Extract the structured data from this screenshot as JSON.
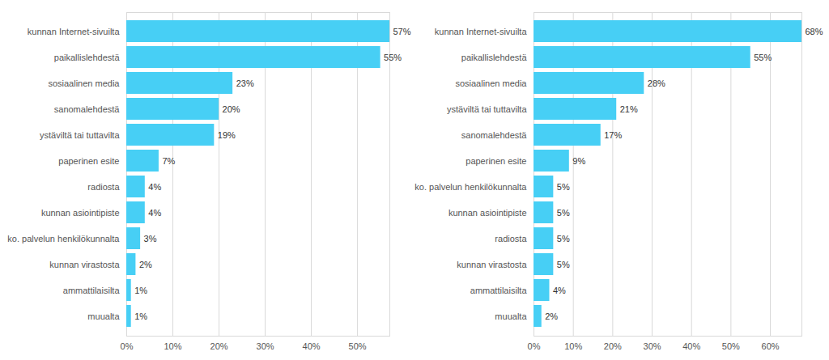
{
  "chart_data": [
    {
      "type": "bar",
      "orientation": "horizontal",
      "categories": [
        "kunnan Internet-sivuilta",
        "paikallislehdestä",
        "sosiaalinen media",
        "sanomalehdestä",
        "ystäviltä tai tuttavilta",
        "paperinen esite",
        "radiosta",
        "kunnan asiointipiste",
        "ko. palvelun henkilökunnalta",
        "kunnan virastosta",
        "ammattilaisilta",
        "muualta"
      ],
      "values": [
        57,
        55,
        23,
        20,
        19,
        7,
        4,
        4,
        3,
        2,
        1,
        1
      ],
      "value_labels": [
        "57%",
        "55%",
        "23%",
        "20%",
        "19%",
        "7%",
        "4%",
        "4%",
        "3%",
        "2%",
        "1%",
        "1%"
      ],
      "color": "#47cff5",
      "xlim": [
        0,
        57
      ],
      "xticks": [
        {
          "value": 0,
          "label": "0%"
        },
        {
          "value": 10,
          "label": "10%"
        },
        {
          "value": 20,
          "label": "20%"
        },
        {
          "value": 30,
          "label": "30%"
        },
        {
          "value": 40,
          "label": "40%"
        },
        {
          "value": 50,
          "label": "50%"
        }
      ],
      "grid": true,
      "data_labels": true
    },
    {
      "type": "bar",
      "orientation": "horizontal",
      "categories": [
        "kunnan Internet-sivuilta",
        "paikallislehdestä",
        "sosiaalinen media",
        "ystäviltä tai tuttavilta",
        "sanomalehdestä",
        "paperinen esite",
        "ko. palvelun henkilökunnalta",
        "kunnan asiointipiste",
        "radiosta",
        "kunnan virastosta",
        "ammattilaisilta",
        "muualta"
      ],
      "values": [
        68,
        55,
        28,
        21,
        17,
        9,
        5,
        5,
        5,
        5,
        4,
        2
      ],
      "value_labels": [
        "68%",
        "55%",
        "28%",
        "21%",
        "17%",
        "9%",
        "5%",
        "5%",
        "5%",
        "5%",
        "4%",
        "2%"
      ],
      "color": "#47cff5",
      "xlim": [
        0,
        68
      ],
      "xticks": [
        {
          "value": 0,
          "label": "0%"
        },
        {
          "value": 10,
          "label": "10%"
        },
        {
          "value": 20,
          "label": "20%"
        },
        {
          "value": 30,
          "label": "30%"
        },
        {
          "value": 40,
          "label": "40%"
        },
        {
          "value": 50,
          "label": "50%"
        },
        {
          "value": 60,
          "label": "60%"
        }
      ],
      "grid": true,
      "data_labels": true
    }
  ]
}
